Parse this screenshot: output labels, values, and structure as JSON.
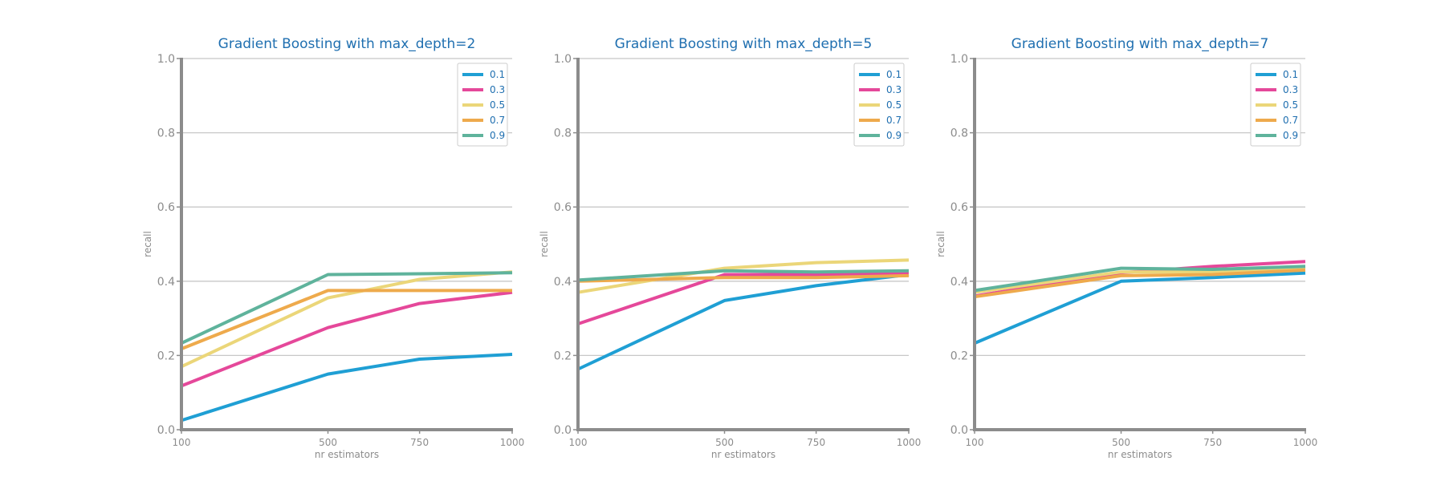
{
  "chart_data": [
    {
      "type": "line",
      "title": "Gradient Boosting with max_depth=2",
      "xlabel": "nr estimators",
      "ylabel": "recall",
      "x": [
        100,
        500,
        750,
        1000
      ],
      "xlim": [
        100,
        1000
      ],
      "ylim": [
        0.0,
        1.0
      ],
      "yticks": [
        "0.0",
        "0.2",
        "0.4",
        "0.6",
        "0.8",
        "1.0"
      ],
      "xticks": [
        "100",
        "500",
        "750",
        "1000"
      ],
      "grid": "horizontal",
      "legend_position": "top-right",
      "series": [
        {
          "name": "0.1",
          "color": "#1f9fd4",
          "values": [
            0.025,
            0.15,
            0.19,
            0.203
          ]
        },
        {
          "name": "0.3",
          "color": "#e5489a",
          "values": [
            0.118,
            0.275,
            0.34,
            0.37
          ]
        },
        {
          "name": "0.5",
          "color": "#ebd679",
          "values": [
            0.17,
            0.355,
            0.405,
            0.425
          ]
        },
        {
          "name": "0.7",
          "color": "#eeaa4c",
          "values": [
            0.218,
            0.375,
            0.375,
            0.375
          ]
        },
        {
          "name": "0.9",
          "color": "#5fb39c",
          "values": [
            0.233,
            0.418,
            0.42,
            0.423
          ]
        }
      ]
    },
    {
      "type": "line",
      "title": "Gradient Boosting with max_depth=5",
      "xlabel": "nr estimators",
      "ylabel": "recall",
      "x": [
        100,
        500,
        750,
        1000
      ],
      "xlim": [
        100,
        1000
      ],
      "ylim": [
        0.0,
        1.0
      ],
      "yticks": [
        "0.0",
        "0.2",
        "0.4",
        "0.6",
        "0.8",
        "1.0"
      ],
      "xticks": [
        "100",
        "500",
        "750",
        "1000"
      ],
      "grid": "horizontal",
      "legend_position": "top-right",
      "series": [
        {
          "name": "0.1",
          "color": "#1f9fd4",
          "values": [
            0.163,
            0.348,
            0.388,
            0.418
          ]
        },
        {
          "name": "0.3",
          "color": "#e5489a",
          "values": [
            0.285,
            0.418,
            0.418,
            0.42
          ]
        },
        {
          "name": "0.5",
          "color": "#ebd679",
          "values": [
            0.37,
            0.435,
            0.45,
            0.457
          ]
        },
        {
          "name": "0.7",
          "color": "#eeaa4c",
          "values": [
            0.4,
            0.41,
            0.41,
            0.415
          ]
        },
        {
          "name": "0.9",
          "color": "#5fb39c",
          "values": [
            0.403,
            0.428,
            0.425,
            0.428
          ]
        }
      ]
    },
    {
      "type": "line",
      "title": "Gradient Boosting with max_depth=7",
      "xlabel": "nr estimators",
      "ylabel": "recall",
      "x": [
        100,
        500,
        750,
        1000
      ],
      "xlim": [
        100,
        1000
      ],
      "ylim": [
        0.0,
        1.0
      ],
      "yticks": [
        "0.0",
        "0.2",
        "0.4",
        "0.6",
        "0.8",
        "1.0"
      ],
      "xticks": [
        "100",
        "500",
        "750",
        "1000"
      ],
      "grid": "horizontal",
      "legend_position": "top-right",
      "series": [
        {
          "name": "0.1",
          "color": "#1f9fd4",
          "values": [
            0.233,
            0.4,
            0.41,
            0.422
          ]
        },
        {
          "name": "0.3",
          "color": "#e5489a",
          "values": [
            0.36,
            0.423,
            0.44,
            0.453
          ]
        },
        {
          "name": "0.5",
          "color": "#ebd679",
          "values": [
            0.37,
            0.425,
            0.425,
            0.438
          ]
        },
        {
          "name": "0.7",
          "color": "#eeaa4c",
          "values": [
            0.358,
            0.415,
            0.418,
            0.43
          ]
        },
        {
          "name": "0.9",
          "color": "#5fb39c",
          "values": [
            0.375,
            0.435,
            0.432,
            0.44
          ]
        }
      ]
    }
  ]
}
